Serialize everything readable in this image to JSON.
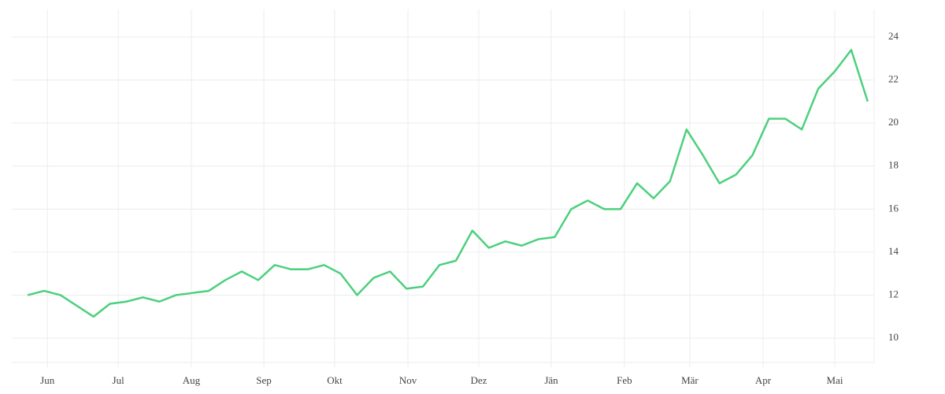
{
  "chart_data": {
    "type": "line",
    "x": [
      0,
      1,
      2,
      3,
      4,
      5,
      6,
      7,
      8,
      9,
      10,
      11,
      12,
      13,
      14,
      15,
      16,
      17,
      18,
      19,
      20,
      21,
      22,
      23,
      24,
      25,
      26,
      27,
      28,
      29,
      30,
      31,
      32,
      33,
      34,
      35,
      36,
      37,
      38,
      39,
      40,
      41,
      42,
      43,
      44,
      45,
      46,
      47,
      48,
      49,
      50,
      51
    ],
    "series": [
      {
        "color": "#4cd07d",
        "values": [
          12.0,
          12.2,
          12.0,
          11.5,
          11.0,
          11.6,
          11.7,
          11.9,
          11.7,
          12.0,
          12.1,
          12.2,
          12.7,
          13.1,
          12.7,
          13.4,
          13.2,
          13.2,
          13.4,
          13.0,
          12.0,
          12.8,
          13.1,
          12.3,
          12.4,
          13.4,
          13.6,
          15.0,
          14.2,
          14.5,
          14.3,
          14.6,
          14.7,
          16.0,
          16.4,
          16.0,
          16.0,
          17.2,
          16.5,
          17.3,
          19.7,
          18.5,
          17.2,
          17.6,
          18.5,
          20.2,
          20.2,
          19.7,
          21.6,
          22.4,
          23.4,
          21.0
        ]
      }
    ],
    "xlim": [
      -0.96,
      51.39
    ],
    "xticks": [
      {
        "value": 1.2,
        "label": "Jun"
      },
      {
        "value": 5.5,
        "label": "Jul"
      },
      {
        "value": 9.94,
        "label": "Aug"
      },
      {
        "value": 14.34,
        "label": "Sep"
      },
      {
        "value": 18.64,
        "label": "Okt"
      },
      {
        "value": 23.09,
        "label": "Nov"
      },
      {
        "value": 27.39,
        "label": "Dez"
      },
      {
        "value": 31.79,
        "label": "Jän"
      },
      {
        "value": 36.23,
        "label": "Feb"
      },
      {
        "value": 40.2,
        "label": "Mär"
      },
      {
        "value": 44.65,
        "label": "Apr"
      },
      {
        "value": 49.0,
        "label": "Mai"
      }
    ],
    "ylim": [
      8.87,
      25.28
    ],
    "yticks": [
      10,
      12,
      14,
      16,
      18,
      20,
      22,
      24
    ],
    "grid": true
  }
}
